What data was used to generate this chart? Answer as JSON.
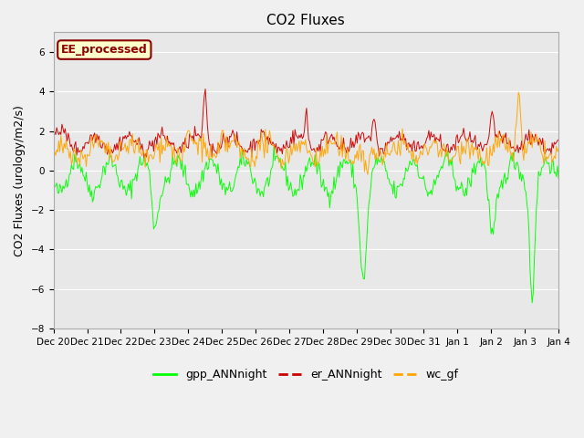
{
  "title": "CO2 Fluxes",
  "ylabel": "CO2 Fluxes (urology/m2/s)",
  "ylim": [
    -8,
    7
  ],
  "yticks": [
    -8,
    -6,
    -4,
    -2,
    0,
    2,
    4,
    6
  ],
  "background_color": "#f0f0f0",
  "plot_bg_color": "#e8e8e8",
  "legend_entries": [
    "gpp_ANNnight",
    "er_ANNnight",
    "wc_gf"
  ],
  "legend_colors": [
    "#00ff00",
    "#cc0000",
    "#ffa500"
  ],
  "annotation_text": "EE_processed",
  "annotation_color": "#8b0000",
  "annotation_bg": "#ffffcc",
  "x_tick_labels": [
    "Dec 20",
    "Dec 21",
    "Dec 22",
    "Dec 23",
    "Dec 24",
    "Dec 25",
    "Dec 26",
    "Dec 27",
    "Dec 28",
    "Dec 29",
    "Dec 30",
    "Dec 31",
    "Jan 1",
    "Jan 2",
    "Jan 3",
    "Jan 4"
  ],
  "n_points": 480,
  "seed": 42
}
